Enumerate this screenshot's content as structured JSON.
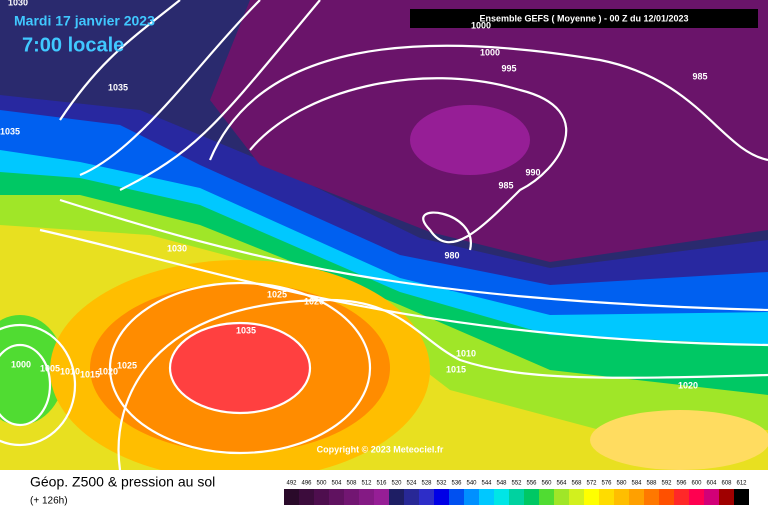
{
  "header": {
    "date": "Mardi 17 janvier 2023",
    "time": "7:00 locale",
    "model": "Ensemble GEFS  ( Moyenne )  -  00 Z du 12/01/2023",
    "copyright": "Copyright © 2023 Meteociel.fr"
  },
  "footer": {
    "title": "Géop. Z500 & pression au sol",
    "lead": "(+ 126h)"
  },
  "isobar_labels": [
    1030,
    1035,
    1035,
    1000,
    1000,
    995,
    985,
    990,
    985,
    980,
    1030,
    1025,
    1020,
    1035,
    1010,
    1015,
    1020,
    1000,
    1005,
    1010,
    1015,
    1020,
    1025
  ],
  "colorbar": {
    "labels": [
      492,
      496,
      500,
      504,
      508,
      512,
      516,
      520,
      524,
      528,
      532,
      536,
      540,
      544,
      548,
      552,
      556,
      560,
      564,
      568,
      572,
      576,
      580,
      584,
      588,
      592,
      596,
      600,
      604,
      608,
      612
    ],
    "colors": [
      "#2a0a2a",
      "#3c0c3c",
      "#4e0e4e",
      "#601260",
      "#721672",
      "#841a84",
      "#961e96",
      "#1e1e64",
      "#282896",
      "#2d2dc8",
      "#0000e6",
      "#0050f0",
      "#0090ff",
      "#00c8ff",
      "#00e6e6",
      "#00d2a0",
      "#00c864",
      "#50dc32",
      "#a0e628",
      "#d2f01e",
      "#ffff00",
      "#ffdc00",
      "#ffbe00",
      "#ffa000",
      "#ff7800",
      "#ff5000",
      "#ff2828",
      "#ff0050",
      "#d20078",
      "#a00000",
      "#000000"
    ]
  }
}
